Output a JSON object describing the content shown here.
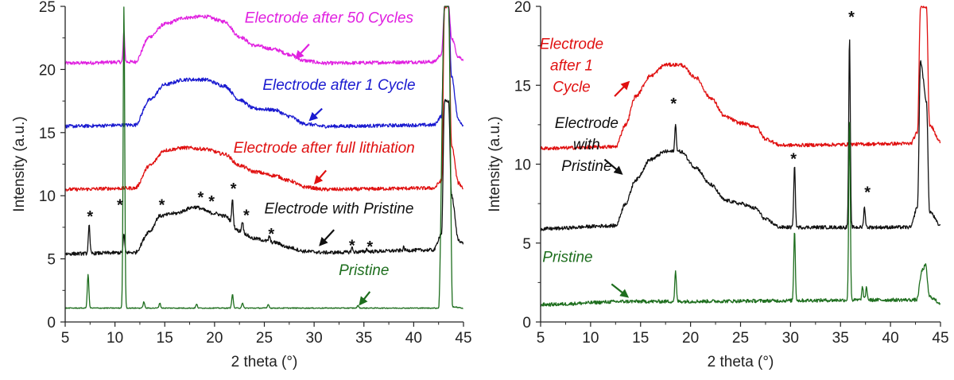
{
  "chart_data": [
    {
      "type": "line",
      "title": "",
      "xlabel": "2 theta (°)",
      "ylabel": "Intensity (a.u.)",
      "xlim": [
        5,
        45
      ],
      "ylim": [
        0,
        25
      ],
      "xticks": [
        5,
        10,
        15,
        20,
        25,
        30,
        35,
        40,
        45
      ],
      "xtick_labels": [
        "5",
        "10",
        "15",
        "20",
        "25",
        "30",
        "35",
        "40",
        "45"
      ],
      "yticks": [
        0,
        5,
        10,
        15,
        20,
        25
      ],
      "ytick_labels": [
        "0",
        "5",
        "10",
        "15",
        "20",
        "25"
      ],
      "series": [
        {
          "name": "Electrode after 50 Cycles",
          "color": "#e020e0",
          "baseline": 20.5,
          "hump_height": 3.7,
          "points": [
            [
              5,
              20.5
            ],
            [
              12,
              20.6
            ],
            [
              13.5,
              22.6
            ],
            [
              15,
              23.6
            ],
            [
              17,
              24.1
            ],
            [
              19,
              24.2
            ],
            [
              21,
              23.8
            ],
            [
              22.5,
              22.6
            ],
            [
              24,
              21.9
            ],
            [
              26,
              21.6
            ],
            [
              27.5,
              21.2
            ],
            [
              29,
              20.7
            ],
            [
              31,
              20.5
            ],
            [
              42,
              20.6
            ],
            [
              42.8,
              21.2
            ],
            [
              43.1,
              25
            ],
            [
              43.5,
              25
            ],
            [
              43.8,
              22.5
            ],
            [
              44.5,
              21.0
            ],
            [
              45,
              20.8
            ]
          ],
          "peaks": [
            [
              10.9,
              23.0
            ]
          ]
        },
        {
          "name": "Electrode after 1 Cycle",
          "color": "#1a1ad0",
          "baseline": 15.5,
          "hump_height": 3.8,
          "points": [
            [
              5,
              15.5
            ],
            [
              12,
              15.6
            ],
            [
              13.5,
              17.6
            ],
            [
              15,
              18.8
            ],
            [
              17,
              19.2
            ],
            [
              19,
              19.2
            ],
            [
              21,
              18.7
            ],
            [
              22.5,
              17.6
            ],
            [
              24,
              16.9
            ],
            [
              26,
              16.8
            ],
            [
              27.5,
              16.3
            ],
            [
              29,
              15.7
            ],
            [
              31,
              15.5
            ],
            [
              42,
              15.6
            ],
            [
              42.8,
              16.3
            ],
            [
              43.1,
              25
            ],
            [
              43.5,
              25
            ],
            [
              43.8,
              19.5
            ],
            [
              44.5,
              16.0
            ],
            [
              45,
              15.6
            ]
          ],
          "peaks": []
        },
        {
          "name": "Electrode after full lithiation",
          "color": "#e01010",
          "baseline": 10.5,
          "hump_height": 3.3,
          "points": [
            [
              5,
              10.5
            ],
            [
              12,
              10.6
            ],
            [
              13.5,
              12.4
            ],
            [
              15,
              13.6
            ],
            [
              17,
              13.8
            ],
            [
              19,
              13.7
            ],
            [
              21,
              13.3
            ],
            [
              22.5,
              12.4
            ],
            [
              24,
              11.9
            ],
            [
              26,
              11.6
            ],
            [
              27.5,
              11.2
            ],
            [
              29,
              10.7
            ],
            [
              31,
              10.5
            ],
            [
              42,
              10.6
            ],
            [
              42.8,
              11.2
            ],
            [
              43.1,
              25
            ],
            [
              43.5,
              25
            ],
            [
              43.8,
              14.0
            ],
            [
              44.5,
              11.0
            ],
            [
              45,
              10.6
            ]
          ],
          "peaks": []
        },
        {
          "name": "Electrode with Pristine",
          "color": "#111111",
          "baseline": 5.5,
          "hump_height": 3.6,
          "points": [
            [
              5,
              5.4
            ],
            [
              12,
              5.5
            ],
            [
              13.5,
              7.2
            ],
            [
              14.5,
              8.4
            ],
            [
              16,
              8.6
            ],
            [
              18,
              9.1
            ],
            [
              20,
              8.6
            ],
            [
              21,
              8.4
            ],
            [
              22.5,
              7.2
            ],
            [
              24,
              6.6
            ],
            [
              26,
              6.3
            ],
            [
              27.5,
              5.9
            ],
            [
              29,
              5.6
            ],
            [
              31,
              5.5
            ],
            [
              42,
              5.7
            ],
            [
              42.8,
              7.0
            ],
            [
              43.1,
              17.5
            ],
            [
              43.5,
              17.5
            ],
            [
              43.8,
              10.0
            ],
            [
              44.5,
              6.5
            ],
            [
              45,
              6.2
            ]
          ],
          "peaks": [
            [
              7.4,
              7.7
            ],
            [
              10.9,
              6.9
            ],
            [
              21.8,
              9.7
            ],
            [
              22.8,
              8.0
            ],
            [
              25.5,
              6.8
            ],
            [
              33.8,
              5.9
            ],
            [
              35.3,
              5.8
            ],
            [
              39.0,
              5.9
            ]
          ]
        },
        {
          "name": "Pristine",
          "color": "#1e6e1e",
          "baseline": 1.1,
          "hump_height": 0,
          "points": [
            [
              5,
              1.1
            ],
            [
              42.5,
              1.1
            ],
            [
              43.1,
              25
            ],
            [
              43.5,
              25
            ],
            [
              43.9,
              1.2
            ],
            [
              45,
              1.1
            ]
          ],
          "peaks": [
            [
              7.3,
              3.8
            ],
            [
              10.9,
              25
            ],
            [
              12.9,
              1.6
            ],
            [
              14.5,
              1.5
            ],
            [
              18.2,
              1.4
            ],
            [
              21.8,
              2.2
            ],
            [
              22.8,
              1.5
            ],
            [
              25.4,
              1.4
            ],
            [
              34.4,
              1.3
            ]
          ]
        }
      ],
      "annotations": [
        {
          "text": "Electrode after 50 Cycles",
          "color": "#e020e0",
          "x": 31.5,
          "y": 23.7,
          "arrow_from": [
            29.5,
            22.0
          ],
          "arrow_to": [
            28.2,
            20.9
          ]
        },
        {
          "text": "Electrode after 1 Cycle",
          "color": "#1a1ad0",
          "x": 32.5,
          "y": 18.4,
          "arrow_from": [
            30.8,
            16.9
          ],
          "arrow_to": [
            29.6,
            16.0
          ]
        },
        {
          "text": "Electrode after full lithiation",
          "color": "#e01010",
          "x": 31.0,
          "y": 13.4,
          "arrow_from": [
            31.2,
            12.0
          ],
          "arrow_to": [
            30.1,
            11.0
          ]
        },
        {
          "text": "Electrode with Pristine",
          "color": "#111111",
          "x": 32.5,
          "y": 8.6,
          "arrow_from": [
            32.0,
            7.3
          ],
          "arrow_to": [
            30.6,
            6.1
          ]
        },
        {
          "text": "Pristine",
          "color": "#1e6e1e",
          "x": 35.0,
          "y": 3.7,
          "arrow_from": [
            35.6,
            2.4
          ],
          "arrow_to": [
            34.6,
            1.4
          ]
        }
      ],
      "markers": [
        {
          "text": "*",
          "x": 7.5,
          "y": 8.7
        },
        {
          "text": "*",
          "x": 10.5,
          "y": 9.6
        },
        {
          "text": "*",
          "x": 14.7,
          "y": 9.6
        },
        {
          "text": "*",
          "x": 18.6,
          "y": 10.2
        },
        {
          "text": "*",
          "x": 19.7,
          "y": 9.9
        },
        {
          "text": "*",
          "x": 21.9,
          "y": 10.9
        },
        {
          "text": "*",
          "x": 23.2,
          "y": 8.8
        },
        {
          "text": "*",
          "x": 25.7,
          "y": 7.3
        },
        {
          "text": "*",
          "x": 33.8,
          "y": 6.4
        },
        {
          "text": "*",
          "x": 35.6,
          "y": 6.3
        }
      ]
    },
    {
      "type": "line",
      "title": "",
      "xlabel": "2 theta (°)",
      "ylabel": "Intensity (a.u.)",
      "xlim": [
        5,
        45
      ],
      "ylim": [
        0,
        20
      ],
      "xticks": [
        5,
        10,
        15,
        20,
        25,
        30,
        35,
        40,
        45
      ],
      "xtick_labels": [
        "5",
        "10",
        "15",
        "20",
        "25",
        "30",
        "35",
        "40",
        "45"
      ],
      "yticks": [
        0,
        5,
        10,
        15,
        20
      ],
      "ytick_labels": [
        "0",
        "5",
        "10",
        "15",
        "20"
      ],
      "series": [
        {
          "name": "Electrode after 1 Cycle",
          "color": "#e01010",
          "baseline": 11.0,
          "hump_height": 5.5,
          "points": [
            [
              5,
              11.0
            ],
            [
              12.5,
              11.1
            ],
            [
              13.5,
              12.5
            ],
            [
              14.5,
              14.3
            ],
            [
              16,
              15.6
            ],
            [
              17.5,
              16.3
            ],
            [
              19,
              16.3
            ],
            [
              20.5,
              15.5
            ],
            [
              22,
              14.2
            ],
            [
              23.5,
              13.0
            ],
            [
              25,
              12.6
            ],
            [
              26.5,
              12.4
            ],
            [
              27.5,
              11.6
            ],
            [
              29,
              11.2
            ],
            [
              42,
              11.3
            ],
            [
              42.7,
              12.0
            ],
            [
              43.0,
              20
            ],
            [
              43.6,
              20
            ],
            [
              43.9,
              12.5
            ],
            [
              45,
              11.4
            ]
          ],
          "peaks": []
        },
        {
          "name": "Electrode with Pristine",
          "color": "#111111",
          "baseline": 6.0,
          "hump_height": 5.0,
          "points": [
            [
              5,
              5.9
            ],
            [
              12.5,
              6.1
            ],
            [
              13.5,
              7.5
            ],
            [
              14.5,
              9.0
            ],
            [
              16,
              10.3
            ],
            [
              17.5,
              10.8
            ],
            [
              19,
              10.8
            ],
            [
              20.5,
              9.8
            ],
            [
              22,
              8.7
            ],
            [
              23.5,
              7.7
            ],
            [
              25,
              7.5
            ],
            [
              26.5,
              7.2
            ],
            [
              27.5,
              6.5
            ],
            [
              29,
              6.0
            ],
            [
              42,
              6.0
            ],
            [
              42.7,
              7.3
            ],
            [
              43.0,
              16.5
            ],
            [
              43.6,
              14.0
            ],
            [
              43.9,
              7.0
            ],
            [
              45,
              6.1
            ]
          ],
          "peaks": [
            [
              18.5,
              12.5
            ],
            [
              30.4,
              10.0
            ],
            [
              35.9,
              18.0
            ],
            [
              37.4,
              7.3
            ]
          ]
        },
        {
          "name": "Pristine",
          "color": "#1e6e1e",
          "baseline": 1.2,
          "hump_height": 0.3,
          "points": [
            [
              5,
              1.1
            ],
            [
              14,
              1.3
            ],
            [
              16,
              1.3
            ],
            [
              42.6,
              1.4
            ],
            [
              43.2,
              3.3
            ],
            [
              43.5,
              3.6
            ],
            [
              43.9,
              1.6
            ],
            [
              45,
              1.2
            ]
          ],
          "peaks": [
            [
              18.5,
              3.2
            ],
            [
              30.4,
              5.8
            ],
            [
              35.9,
              12.9
            ],
            [
              37.2,
              2.2
            ],
            [
              37.6,
              2.2
            ]
          ]
        }
      ],
      "annotations": [
        {
          "lines": [
            "Electrode",
            "after 1",
            "Cycle"
          ],
          "color": "#e01010",
          "x": 8.1,
          "y": 17.3,
          "arrow_from": [
            12.4,
            14.3
          ],
          "arrow_to": [
            13.8,
            15.2
          ]
        },
        {
          "lines": [
            "Electrode",
            "with",
            "Pristine"
          ],
          "color": "#111111",
          "x": 9.6,
          "y": 12.3,
          "arrow_from": [
            11.4,
            10.3
          ],
          "arrow_to": [
            13.1,
            9.4
          ]
        },
        {
          "text": "Pristine",
          "color": "#1e6e1e",
          "x": 7.7,
          "y": 3.8,
          "arrow_from": [
            12.1,
            2.4
          ],
          "arrow_to": [
            13.7,
            1.6
          ]
        }
      ],
      "markers": [
        {
          "text": "*",
          "x": 18.3,
          "y": 14.1
        },
        {
          "text": "*",
          "x": 30.3,
          "y": 10.6
        },
        {
          "text": "*",
          "x": 36.1,
          "y": 19.6
        },
        {
          "text": "*",
          "x": 37.7,
          "y": 8.5
        }
      ]
    }
  ]
}
